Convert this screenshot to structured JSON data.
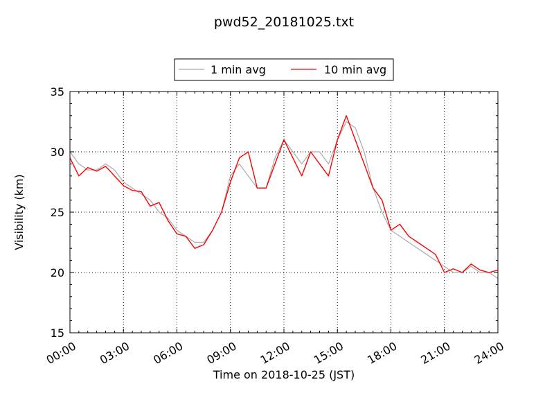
{
  "chart_data": {
    "type": "line",
    "title": "pwd52_20181025.txt",
    "xlabel": "Time on 2018-10-25 (JST)",
    "ylabel": "Visibility (km)",
    "xlim": [
      "00:00",
      "24:00"
    ],
    "ylim": [
      15,
      35
    ],
    "x_ticks": [
      "00:00",
      "03:00",
      "06:00",
      "09:00",
      "12:00",
      "15:00",
      "18:00",
      "21:00",
      "24:00"
    ],
    "y_ticks": [
      15,
      20,
      25,
      30,
      35
    ],
    "grid": true,
    "legend_placement": "top-center, outside plot",
    "series": [
      {
        "name": "1 min avg",
        "color": "#aaaaaa",
        "x": [
          "00:00",
          "00:30",
          "01:00",
          "01:30",
          "02:00",
          "02:30",
          "03:00",
          "03:30",
          "04:00",
          "04:30",
          "05:00",
          "05:30",
          "06:00",
          "06:30",
          "07:00",
          "07:30",
          "08:00",
          "08:30",
          "09:00",
          "09:30",
          "10:00",
          "10:30",
          "11:00",
          "11:30",
          "12:00",
          "12:30",
          "13:00",
          "13:30",
          "14:00",
          "14:30",
          "15:00",
          "15:30",
          "16:00",
          "16:30",
          "17:00",
          "17:30",
          "18:00",
          "18:30",
          "19:00",
          "19:30",
          "20:00",
          "20:30",
          "21:00",
          "21:30",
          "22:00",
          "22:30",
          "23:00",
          "23:30",
          "24:00"
        ],
        "y": [
          30,
          29,
          28.5,
          28.5,
          29,
          28.5,
          27.5,
          27,
          26.5,
          26,
          25,
          24.5,
          23.5,
          23,
          22.5,
          22.5,
          23.5,
          25,
          28,
          29,
          28,
          27,
          27,
          29.5,
          31,
          30,
          29,
          30,
          30,
          29,
          31,
          32.5,
          32,
          30,
          27,
          25,
          23.5,
          23,
          22.5,
          22,
          21.5,
          21,
          20.5,
          20,
          20,
          20.5,
          20,
          20,
          19.5
        ]
      },
      {
        "name": "10 min avg",
        "color": "#ff0000",
        "x": [
          "00:00",
          "00:30",
          "01:00",
          "01:30",
          "02:00",
          "02:30",
          "03:00",
          "03:30",
          "04:00",
          "04:30",
          "05:00",
          "05:30",
          "06:00",
          "06:30",
          "07:00",
          "07:30",
          "08:00",
          "08:30",
          "09:00",
          "09:30",
          "10:00",
          "10:30",
          "11:00",
          "11:30",
          "12:00",
          "12:30",
          "13:00",
          "13:30",
          "14:00",
          "14:30",
          "15:00",
          "15:30",
          "16:00",
          "16:30",
          "17:00",
          "17:30",
          "18:00",
          "18:30",
          "19:00",
          "19:30",
          "20:00",
          "20:30",
          "21:00",
          "21:30",
          "22:00",
          "22:30",
          "23:00",
          "23:30",
          "24:00"
        ],
        "y": [
          29.5,
          28,
          28.7,
          28.4,
          28.8,
          28,
          27.2,
          26.8,
          26.7,
          25.5,
          25.8,
          24.3,
          23.2,
          23,
          22,
          22.3,
          23.5,
          25,
          27.5,
          29.5,
          30,
          27,
          27,
          29,
          31,
          29.5,
          28,
          30,
          29,
          28,
          31,
          33,
          31,
          29,
          27,
          26,
          23.5,
          24,
          23,
          22.5,
          22,
          21.5,
          20,
          20.3,
          20,
          20.7,
          20.2,
          20,
          20.2
        ]
      }
    ]
  }
}
